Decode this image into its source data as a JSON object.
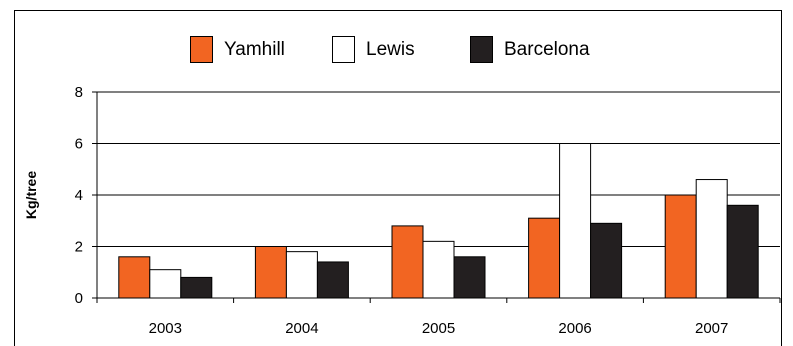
{
  "chart_data": {
    "type": "bar",
    "categories": [
      "2003",
      "2004",
      "2005",
      "2006",
      "2007"
    ],
    "series": [
      {
        "name": "Yamhill",
        "color": "#f26522",
        "values": [
          1.6,
          2.0,
          2.8,
          3.1,
          4.0
        ]
      },
      {
        "name": "Lewis",
        "color": "#ffffff",
        "values": [
          1.1,
          1.8,
          2.2,
          6.0,
          4.6
        ]
      },
      {
        "name": "Barcelona",
        "color": "#231f20",
        "values": [
          0.8,
          1.4,
          1.6,
          2.9,
          3.6
        ]
      }
    ],
    "ylabel": "Kg/tree",
    "xlabel": "",
    "ylim": [
      0,
      8
    ],
    "yticks": [
      0,
      2,
      4,
      6,
      8
    ],
    "grid": true,
    "legend_position": "top"
  }
}
